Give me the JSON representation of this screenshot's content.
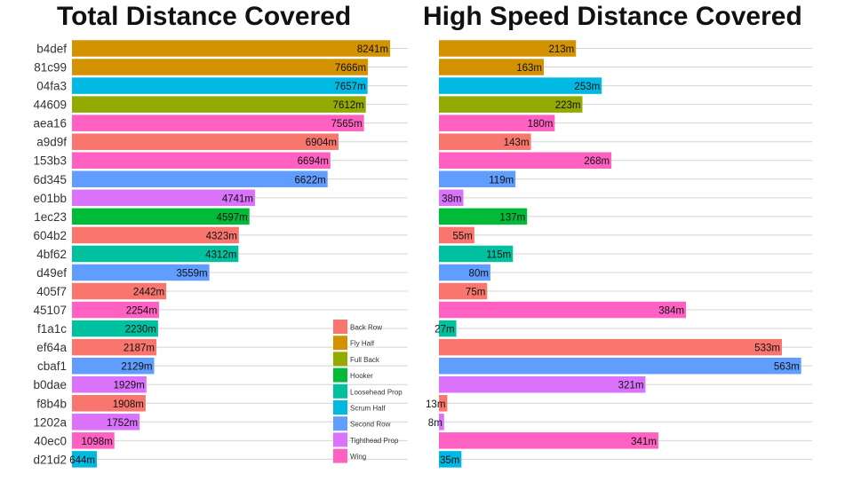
{
  "chart_data": [
    {
      "type": "bar",
      "orientation": "horizontal",
      "title": "Total Distance Covered",
      "unit": "m",
      "xlim": [
        0,
        8700
      ],
      "grid": true,
      "categories": [
        "b4def",
        "81c99",
        "04fa3",
        "44609",
        "aea16",
        "a9d9f",
        "153b3",
        "6d345",
        "e01bb",
        "1ec23",
        "604b2",
        "4bf62",
        "d49ef",
        "405f7",
        "45107",
        "f1a1c",
        "ef64a",
        "cbaf1",
        "b0dae",
        "f8b4b",
        "1202a",
        "40ec0",
        "d21d2"
      ],
      "values": [
        8241,
        7666,
        7657,
        7612,
        7565,
        6904,
        6694,
        6622,
        4741,
        4597,
        4323,
        4312,
        3559,
        2442,
        2254,
        2230,
        2187,
        2129,
        1929,
        1908,
        1752,
        1098,
        644
      ],
      "positions": [
        "Fly Half",
        "Fly Half",
        "Scrum Half",
        "Full Back",
        "Wing",
        "Back Row",
        "Wing",
        "Second Row",
        "Tighthead Prop",
        "Hooker",
        "Back Row",
        "Loosehead Prop",
        "Second Row",
        "Back Row",
        "Wing",
        "Loosehead Prop",
        "Back Row",
        "Second Row",
        "Tighthead Prop",
        "Back Row",
        "Tighthead Prop",
        "Wing",
        "Scrum Half"
      ],
      "labels": [
        "8241m",
        "7666m",
        "7657m",
        "7612m",
        "7565m",
        "6904m",
        "6694m",
        "6622m",
        "4741m",
        "4597m",
        "4323m",
        "4312m",
        "3559m",
        "2442m",
        "2254m",
        "2230m",
        "2187m",
        "2129m",
        "1929m",
        "1908m",
        "1752m",
        "1098m",
        "644m"
      ]
    },
    {
      "type": "bar",
      "orientation": "horizontal",
      "title": "High Speed Distance Covered",
      "unit": "m",
      "xlim": [
        0,
        580
      ],
      "grid": true,
      "categories": [
        "b4def",
        "81c99",
        "04fa3",
        "44609",
        "aea16",
        "a9d9f",
        "153b3",
        "6d345",
        "e01bb",
        "1ec23",
        "604b2",
        "4bf62",
        "d49ef",
        "405f7",
        "45107",
        "f1a1c",
        "ef64a",
        "cbaf1",
        "b0dae",
        "f8b4b",
        "1202a",
        "40ec0",
        "d21d2"
      ],
      "values": [
        213,
        163,
        253,
        223,
        180,
        143,
        268,
        119,
        38,
        137,
        55,
        115,
        80,
        75,
        384,
        27,
        533,
        563,
        321,
        13,
        8,
        341,
        35
      ],
      "positions": [
        "Fly Half",
        "Fly Half",
        "Scrum Half",
        "Full Back",
        "Wing",
        "Back Row",
        "Wing",
        "Second Row",
        "Tighthead Prop",
        "Hooker",
        "Back Row",
        "Loosehead Prop",
        "Second Row",
        "Back Row",
        "Wing",
        "Loosehead Prop",
        "Back Row",
        "Second Row",
        "Tighthead Prop",
        "Back Row",
        "Tighthead Prop",
        "Wing",
        "Scrum Half"
      ],
      "labels": [
        "213m",
        "163m",
        "253m",
        "223m",
        "180m",
        "143m",
        "268m",
        "119m",
        "38m",
        "137m",
        "55m",
        "115m",
        "80m",
        "75m",
        "384m",
        "27m",
        "533m",
        "563m",
        "321m",
        "13m",
        "8m",
        "341m",
        "35m"
      ]
    }
  ],
  "legend": {
    "placement": "inside-bottom-right of left panel",
    "entries": [
      {
        "name": "Back Row",
        "color": "#F8766D"
      },
      {
        "name": "Fly Half",
        "color": "#D39200"
      },
      {
        "name": "Full Back",
        "color": "#93AA00"
      },
      {
        "name": "Hooker",
        "color": "#00BA38"
      },
      {
        "name": "Loosehead Prop",
        "color": "#00C19F"
      },
      {
        "name": "Scrum Half",
        "color": "#00B9E3"
      },
      {
        "name": "Second Row",
        "color": "#619CFF"
      },
      {
        "name": "Tighthead Prop",
        "color": "#DB72FB"
      },
      {
        "name": "Wing",
        "color": "#FF61C3"
      }
    ]
  }
}
